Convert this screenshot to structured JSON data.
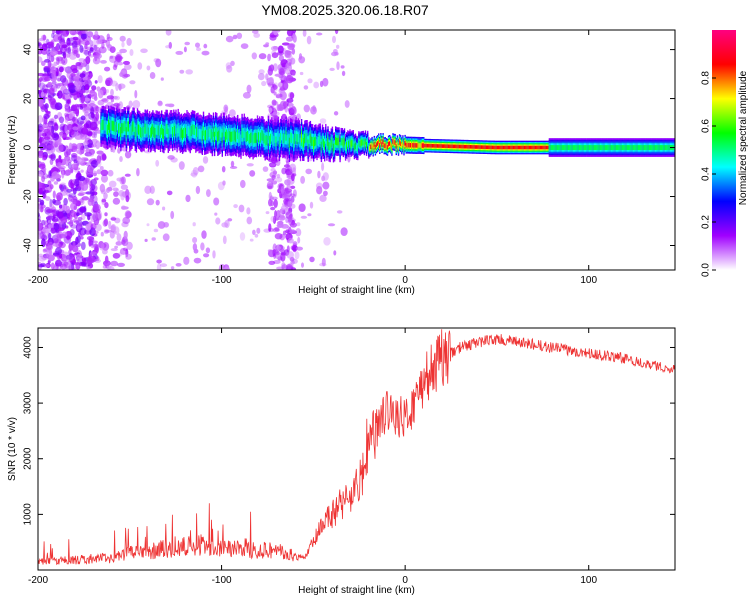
{
  "title": "YM08.2025.320.06.18.R07",
  "chart_data": [
    {
      "type": "heatmap",
      "title": "YM08.2025.320.06.18.R07",
      "xlabel": "Height of straight line (km)",
      "ylabel": "Frequency (Hz)",
      "xlim": [
        -200,
        147
      ],
      "ylim": [
        -50,
        48
      ],
      "xticks": [
        -200,
        -100,
        0,
        100
      ],
      "yticks": [
        -40,
        -20,
        0,
        20,
        40
      ],
      "grid": false,
      "colorbar": {
        "label": "Normalized spectral amplitude",
        "range": [
          0,
          1
        ],
        "ticks": [
          0.0,
          0.2,
          0.4,
          0.6,
          0.8
        ],
        "tick_labels": [
          "0.0",
          "0.2",
          "0.4",
          "0.6",
          "0.8"
        ],
        "colormap": [
          "#ffffff",
          "#a000ff",
          "#0000ff",
          "#00ffff",
          "#00ff00",
          "#ffff00",
          "#ff0000",
          "#ff0080"
        ]
      },
      "ridge": [
        {
          "x": -165,
          "freq": 8
        },
        {
          "x": -140,
          "freq": 7
        },
        {
          "x": -110,
          "freq": 6
        },
        {
          "x": -80,
          "freq": 4
        },
        {
          "x": -55,
          "freq": 3
        },
        {
          "x": -35,
          "freq": 1
        },
        {
          "x": -20,
          "freq": 1
        },
        {
          "x": 0,
          "freq": 1
        },
        {
          "x": 50,
          "freq": 0
        },
        {
          "x": 100,
          "freq": 0
        },
        {
          "x": 147,
          "freq": 0
        }
      ]
    },
    {
      "type": "line",
      "xlabel": "Height of straight line (km)",
      "ylabel": "SNR (10 * v/v)",
      "xlim": [
        -200,
        147
      ],
      "ylim": [
        0,
        4350
      ],
      "xticks": [
        -200,
        -100,
        0,
        100
      ],
      "yticks": [
        1000,
        2000,
        3000,
        4000
      ],
      "grid": false,
      "line_color": "#ee3333",
      "series": [
        {
          "name": "SNR",
          "x": [
            -200,
            -180,
            -160,
            -150,
            -130,
            -110,
            -90,
            -70,
            -55,
            -45,
            -35,
            -25,
            -20,
            -15,
            -10,
            -5,
            0,
            5,
            10,
            20,
            30,
            40,
            50,
            60,
            80,
            100,
            120,
            147
          ],
          "y": [
            150,
            180,
            220,
            300,
            380,
            450,
            400,
            350,
            200,
            800,
            1200,
            1500,
            2300,
            2500,
            2900,
            2800,
            2700,
            3000,
            3400,
            3800,
            4000,
            4100,
            4150,
            4100,
            4000,
            3900,
            3800,
            3600
          ]
        }
      ]
    }
  ]
}
